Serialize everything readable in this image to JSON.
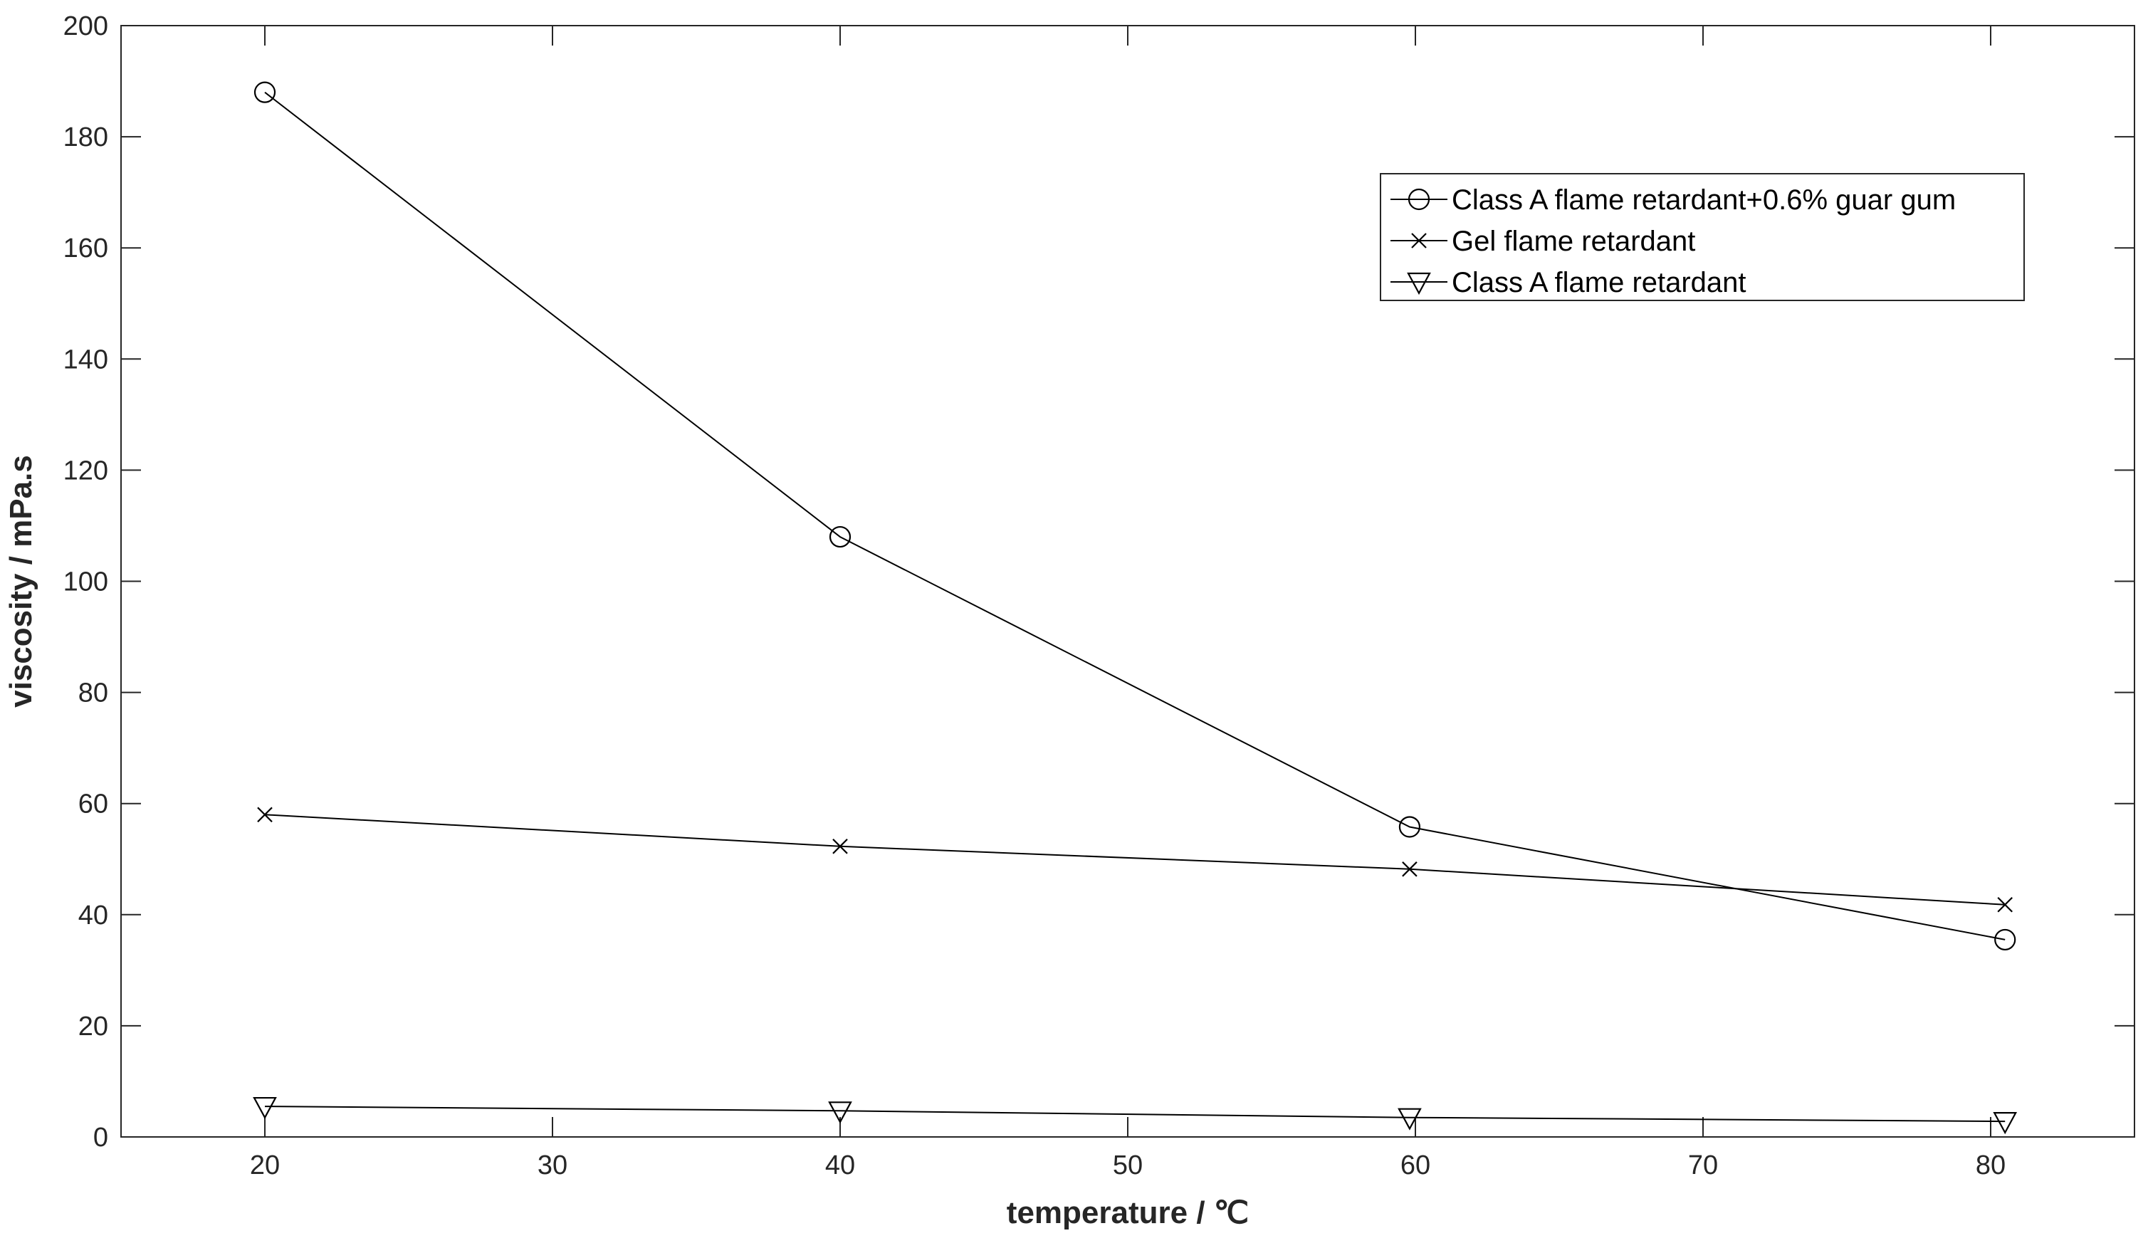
{
  "chart_data": {
    "type": "line",
    "xlabel": "temperature / ℃",
    "ylabel": "viscosity / mPa.s",
    "xlim": [
      15,
      85
    ],
    "ylim": [
      0,
      200
    ],
    "x_ticks": [
      20,
      30,
      40,
      50,
      60,
      70,
      80
    ],
    "y_ticks": [
      0,
      20,
      40,
      60,
      80,
      100,
      120,
      140,
      160,
      180,
      200
    ],
    "grid": false,
    "legend_position": "top-right",
    "line_color": "#000000",
    "series": [
      {
        "name": "Class A flame retardant+0.6% guar gum",
        "marker": "circle",
        "x": [
          20,
          40,
          59.8,
          80.5
        ],
        "y": [
          188,
          108,
          55.8,
          35.5
        ]
      },
      {
        "name": "Gel flame retardant",
        "marker": "x",
        "x": [
          20,
          40,
          59.8,
          80.5
        ],
        "y": [
          58,
          52.3,
          48.2,
          41.8
        ]
      },
      {
        "name": "Class A flame retardant",
        "marker": "triangle-down",
        "x": [
          20,
          40,
          59.8,
          80.5
        ],
        "y": [
          5.5,
          4.7,
          3.5,
          2.8
        ]
      }
    ]
  }
}
